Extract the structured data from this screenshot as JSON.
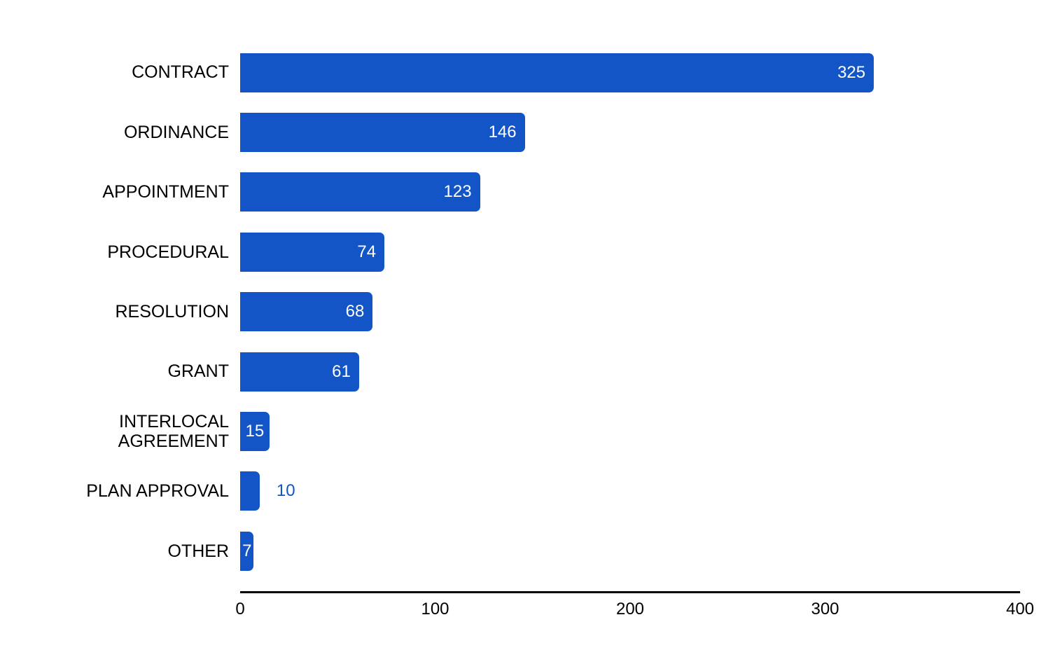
{
  "chart_data": {
    "type": "bar",
    "orientation": "horizontal",
    "title": "",
    "xlabel": "",
    "ylabel": "",
    "categories": [
      "CONTRACT",
      "ORDINANCE",
      "APPOINTMENT",
      "PROCEDURAL",
      "RESOLUTION",
      "GRANT",
      "INTERLOCAL\nAGREEMENT",
      "PLAN APPROVAL",
      "OTHER"
    ],
    "values": [
      325,
      146,
      123,
      74,
      68,
      61,
      15,
      10,
      7
    ],
    "value_labels": [
      "325",
      "146",
      "123",
      "74",
      "68",
      "61",
      "15",
      "10",
      "7"
    ],
    "value_label_positions": [
      "inside-end",
      "inside-end",
      "inside-end",
      "inside-end",
      "inside-end",
      "inside-end",
      "center",
      "outside",
      "center"
    ],
    "xlim": [
      0,
      400
    ],
    "x_ticks": [
      0,
      100,
      200,
      300,
      400
    ],
    "x_tick_labels": [
      "0",
      "100",
      "200",
      "300",
      "400"
    ],
    "grid": false,
    "legend": false,
    "colors": {
      "bar": "#1354c6",
      "value_label_inside": "#ffffff",
      "value_label_outside": "#1354c6",
      "category_label": "#000000",
      "axis_line": "#000000",
      "axis_tick_label": "#000000",
      "background": "#ffffff"
    }
  }
}
